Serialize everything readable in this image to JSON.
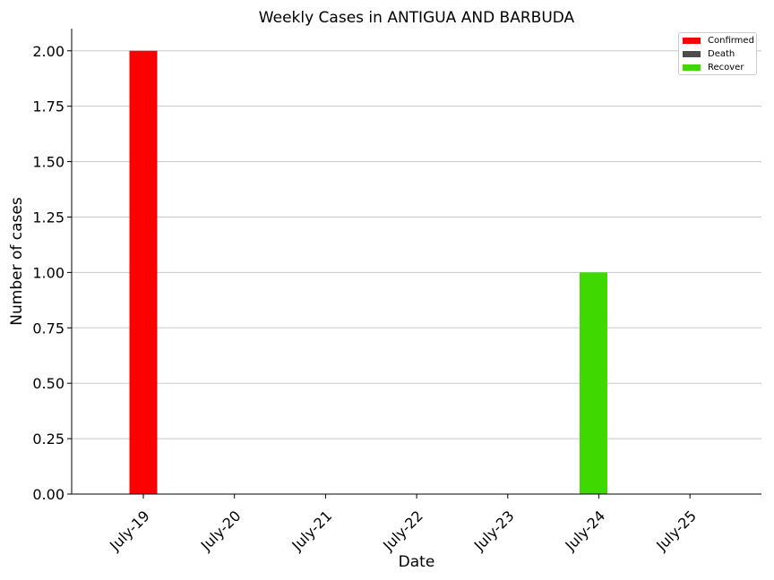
{
  "chart_data": {
    "type": "bar",
    "title": "Weekly Cases in ANTIGUA AND BARBUDA",
    "xlabel": "Date",
    "ylabel": "Number of cases",
    "categories": [
      "July-19",
      "July-20",
      "July-21",
      "July-22",
      "July-23",
      "July-24",
      "July-25"
    ],
    "series": [
      {
        "name": "Confirmed",
        "color": "#ff0000",
        "values": [
          2,
          0,
          0,
          0,
          0,
          0,
          0
        ]
      },
      {
        "name": "Death",
        "color": "#4d4d4d",
        "values": [
          0,
          0,
          0,
          0,
          0,
          0,
          0
        ]
      },
      {
        "name": "Recover",
        "color": "#3fd800",
        "values": [
          0,
          0,
          0,
          0,
          0,
          1,
          0
        ]
      }
    ],
    "ylim": [
      0,
      2.1
    ],
    "yticks": [
      "0.00",
      "0.25",
      "0.50",
      "0.75",
      "1.00",
      "1.25",
      "1.50",
      "1.75",
      "2.00"
    ],
    "grid": "horizontal",
    "legend_position": "top-right"
  }
}
